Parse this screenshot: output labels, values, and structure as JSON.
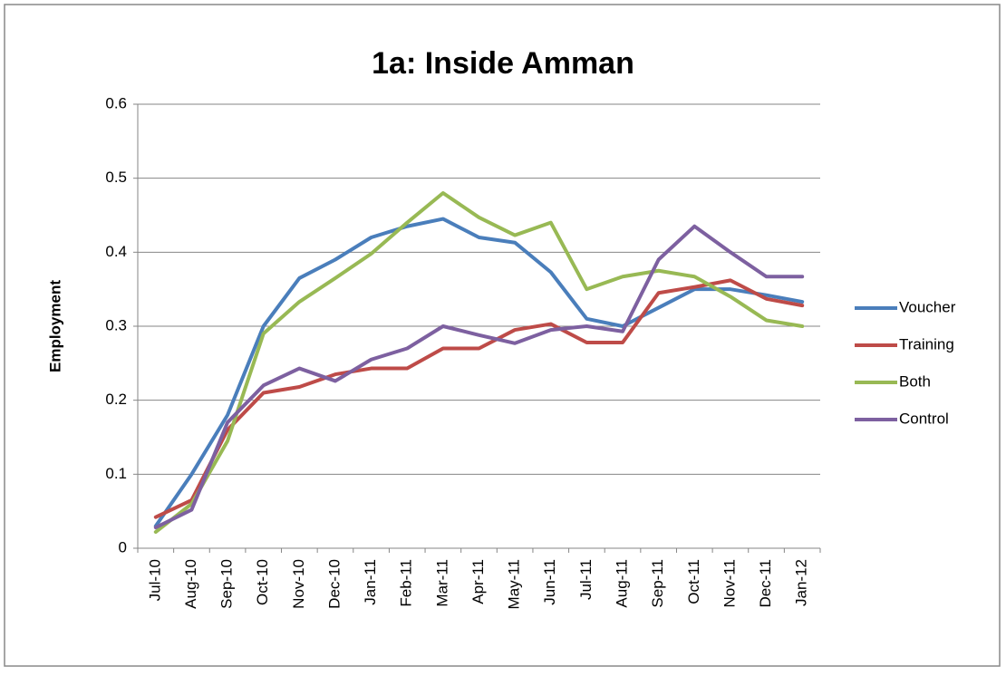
{
  "chart_data": {
    "type": "line",
    "title": "1a: Inside Amman",
    "y_label": "Employment",
    "categories": [
      "Jul-10",
      "Aug-10",
      "Sep-10",
      "Oct-10",
      "Nov-10",
      "Dec-10",
      "Jan-11",
      "Feb-11",
      "Mar-11",
      "Apr-11",
      "May-11",
      "Jun-11",
      "Jul-11",
      "Aug-11",
      "Sep-11",
      "Oct-11",
      "Nov-11",
      "Dec-11",
      "Jan-12"
    ],
    "series": [
      {
        "name": "Voucher",
        "color": "#4a7ebb",
        "values": [
          0.03,
          0.1,
          0.18,
          0.3,
          0.365,
          0.39,
          0.42,
          0.435,
          0.445,
          0.42,
          0.413,
          0.373,
          0.31,
          0.3,
          0.325,
          0.35,
          0.35,
          0.342,
          0.333
        ]
      },
      {
        "name": "Training",
        "color": "#be4b48",
        "values": [
          0.042,
          0.065,
          0.16,
          0.21,
          0.218,
          0.235,
          0.243,
          0.243,
          0.27,
          0.27,
          0.295,
          0.303,
          0.278,
          0.278,
          0.345,
          0.353,
          0.362,
          0.337,
          0.328
        ]
      },
      {
        "name": "Both",
        "color": "#98b954",
        "values": [
          0.022,
          0.06,
          0.145,
          0.29,
          0.333,
          0.365,
          0.398,
          0.44,
          0.48,
          0.447,
          0.423,
          0.44,
          0.35,
          0.367,
          0.375,
          0.367,
          0.34,
          0.308,
          0.3
        ]
      },
      {
        "name": "Control",
        "color": "#7d60a0",
        "values": [
          0.028,
          0.052,
          0.17,
          0.22,
          0.243,
          0.226,
          0.255,
          0.27,
          0.3,
          0.288,
          0.277,
          0.295,
          0.3,
          0.293,
          0.39,
          0.435,
          0.4,
          0.367,
          0.367
        ]
      }
    ],
    "ylim": [
      0,
      0.6
    ],
    "yticks": [
      0,
      0.1,
      0.2,
      0.3,
      0.4,
      0.5,
      0.6
    ],
    "grid": true,
    "legend": "right"
  }
}
